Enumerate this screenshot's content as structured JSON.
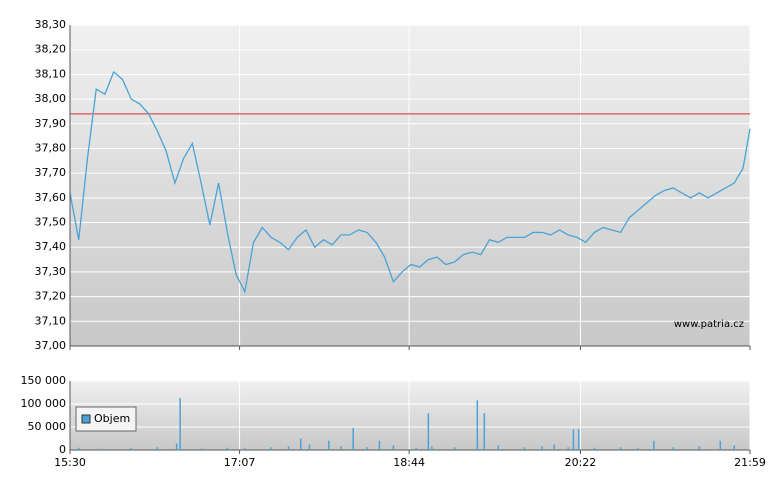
{
  "chart_data": [
    {
      "type": "line",
      "x": [
        "15:30",
        "15:35",
        "15:40",
        "15:45",
        "15:50",
        "15:55",
        "16:00",
        "16:05",
        "16:10",
        "16:15",
        "16:20",
        "16:25",
        "16:30",
        "16:35",
        "16:40",
        "16:45",
        "16:50",
        "16:55",
        "17:00",
        "17:05",
        "17:10",
        "17:15",
        "17:20",
        "17:25",
        "17:30",
        "17:35",
        "17:40",
        "17:45",
        "17:50",
        "17:55",
        "18:00",
        "18:05",
        "18:10",
        "18:15",
        "18:20",
        "18:25",
        "18:30",
        "18:35",
        "18:40",
        "18:45",
        "18:50",
        "18:55",
        "19:00",
        "19:05",
        "19:10",
        "19:15",
        "19:20",
        "19:25",
        "19:30",
        "19:35",
        "19:40",
        "19:45",
        "19:50",
        "19:55",
        "20:00",
        "20:05",
        "20:10",
        "20:15",
        "20:20",
        "20:25",
        "20:30",
        "20:35",
        "20:40",
        "20:45",
        "20:50",
        "20:55",
        "21:00",
        "21:05",
        "21:10",
        "21:15",
        "21:20",
        "21:25",
        "21:30",
        "21:35",
        "21:40",
        "21:45",
        "21:50",
        "21:55",
        "21:59"
      ],
      "values": [
        37.62,
        37.43,
        37.76,
        38.04,
        38.02,
        38.11,
        38.08,
        38.0,
        37.98,
        37.94,
        37.87,
        37.79,
        37.66,
        37.76,
        37.82,
        37.66,
        37.49,
        37.66,
        37.46,
        37.29,
        37.22,
        37.42,
        37.48,
        37.44,
        37.42,
        37.39,
        37.44,
        37.47,
        37.4,
        37.43,
        37.41,
        37.45,
        37.45,
        37.47,
        37.46,
        37.42,
        37.36,
        37.26,
        37.3,
        37.33,
        37.32,
        37.35,
        37.36,
        37.33,
        37.34,
        37.37,
        37.38,
        37.37,
        37.43,
        37.42,
        37.44,
        37.44,
        37.44,
        37.46,
        37.46,
        37.45,
        37.47,
        37.45,
        37.44,
        37.42,
        37.46,
        37.48,
        37.47,
        37.46,
        37.52,
        37.55,
        37.58,
        37.61,
        37.63,
        37.64,
        37.62,
        37.6,
        37.62,
        37.6,
        37.62,
        37.64,
        37.66,
        37.72,
        37.88
      ],
      "color": "#4aa3d6",
      "reference_line": 37.94,
      "reference_color": "#e05050",
      "xlim": [
        "15:30",
        "21:59"
      ],
      "xticks": [
        "15:30",
        "17:07",
        "18:44",
        "20:22",
        "21:59"
      ],
      "ylim": [
        37.0,
        38.3
      ],
      "yticks": [
        {
          "value": 37.0,
          "label": "37,00"
        },
        {
          "value": 37.1,
          "label": "37,10"
        },
        {
          "value": 37.2,
          "label": "37,20"
        },
        {
          "value": 37.3,
          "label": "37,30"
        },
        {
          "value": 37.4,
          "label": "37,40"
        },
        {
          "value": 37.5,
          "label": "37,50"
        },
        {
          "value": 37.6,
          "label": "37,60"
        },
        {
          "value": 37.7,
          "label": "37,70"
        },
        {
          "value": 37.8,
          "label": "37,80"
        },
        {
          "value": 37.9,
          "label": "37,90"
        },
        {
          "value": 38.0,
          "label": "38,00"
        },
        {
          "value": 38.1,
          "label": "38,10"
        },
        {
          "value": 38.2,
          "label": "38,20"
        },
        {
          "value": 38.3,
          "label": "38,30"
        }
      ],
      "grid": true,
      "watermark": "www.patria.cz"
    },
    {
      "type": "bar",
      "x": [
        "15:35",
        "15:48",
        "16:05",
        "16:20",
        "16:31",
        "16:33",
        "16:45",
        "17:00",
        "17:10",
        "17:25",
        "17:35",
        "17:42",
        "17:47",
        "17:58",
        "18:05",
        "18:12",
        "18:20",
        "18:27",
        "18:35",
        "18:48",
        "18:55",
        "18:57",
        "19:10",
        "19:23",
        "19:27",
        "19:35",
        "19:50",
        "20:00",
        "20:07",
        "20:15",
        "20:18",
        "20:21",
        "20:30",
        "20:45",
        "20:55",
        "21:04",
        "21:15",
        "21:30",
        "21:42",
        "21:50"
      ],
      "series": [
        {
          "name": "Objem",
          "color": "#4aa3d6",
          "values": [
            5000,
            3000,
            4000,
            6000,
            14000,
            113000,
            3000,
            5000,
            4000,
            6000,
            8000,
            25000,
            12000,
            20000,
            8000,
            48000,
            6000,
            20000,
            10000,
            5000,
            80000,
            8000,
            6000,
            108000,
            80000,
            10000,
            6000,
            8000,
            12000,
            6000,
            45000,
            45000,
            5000,
            6000,
            4000,
            20000,
            6000,
            8000,
            20000,
            10000
          ]
        }
      ],
      "legend": "top-left",
      "xlim": [
        "15:30",
        "21:59"
      ],
      "xticks": [
        "15:30",
        "17:07",
        "18:44",
        "20:22",
        "21:59"
      ],
      "ylim": [
        0,
        150000
      ],
      "yticks": [
        0,
        {
          "value": 50000,
          "label": "50 000"
        },
        {
          "value": 100000,
          "label": "100 000"
        },
        {
          "value": 150000,
          "label": "150 000"
        }
      ],
      "grid": true
    }
  ]
}
